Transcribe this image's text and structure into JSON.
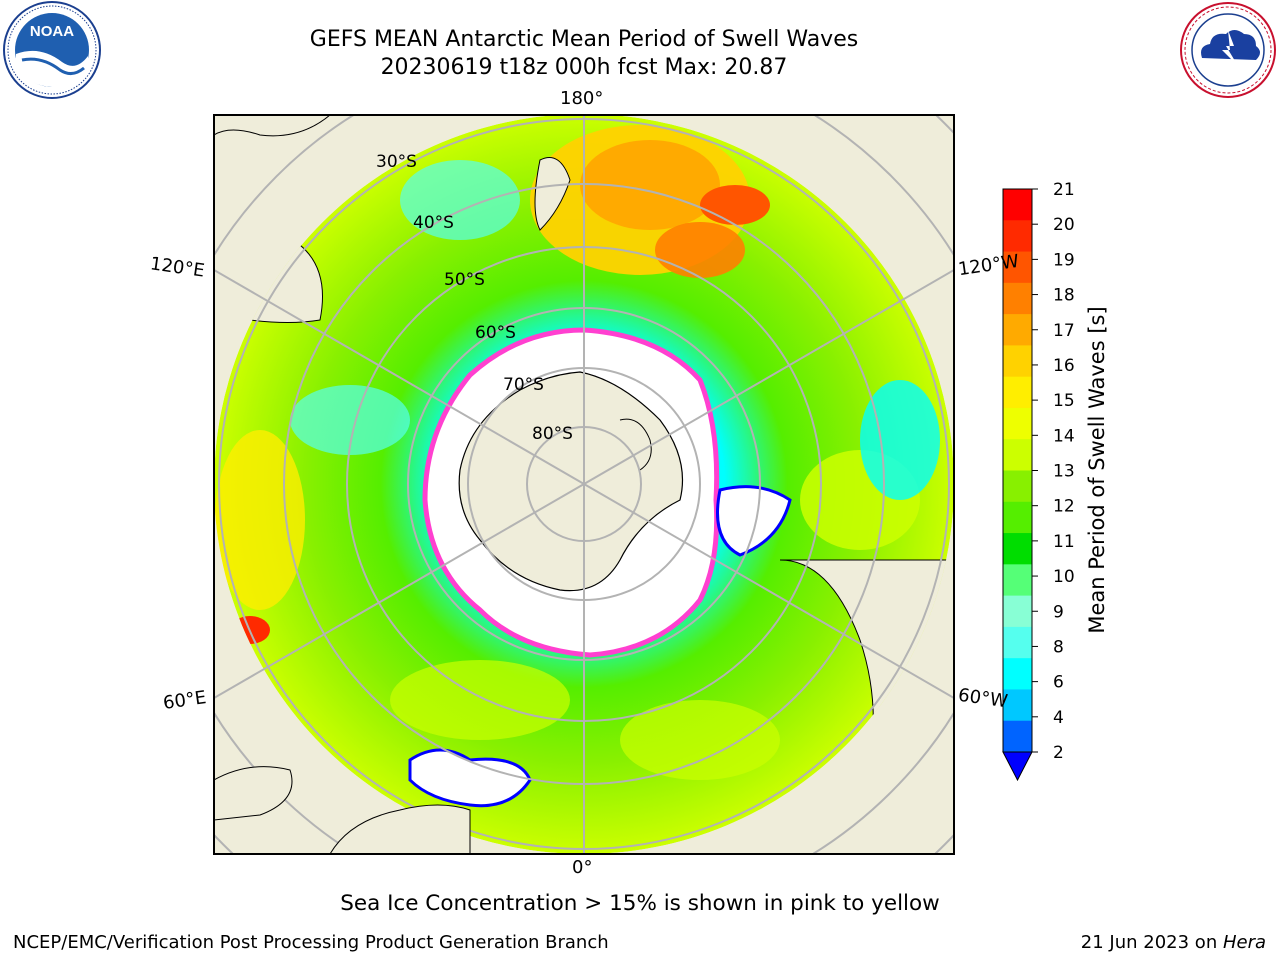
{
  "header": {
    "title_line1": "GEFS MEAN Antarctic Mean Period of Swell Waves",
    "title_line2": "20230619 t18z 000h fcst   Max: 20.87"
  },
  "logos": {
    "left": {
      "name": "noaa-logo",
      "text": "NOAA",
      "ring_text": "NATIONAL OCEANIC AND ATMOSPHERIC ADMINISTRATION · U.S. DEPARTMENT OF COMMERCE"
    },
    "right": {
      "name": "nws-logo",
      "ring_text": "NATIONAL WEATHER SERVICE"
    }
  },
  "map": {
    "projection": "south-polar-stereographic",
    "lon_labels": {
      "top": "180°",
      "upper_left": "120°E",
      "upper_right": "120°W",
      "lower_left": "60°E",
      "lower_right": "60°W",
      "bottom": "0°"
    },
    "lat_labels": [
      "30°S",
      "40°S",
      "50°S",
      "60°S",
      "70°S",
      "80°S"
    ],
    "colors": {
      "land": "#efedda",
      "ice": "#ffffff",
      "grid": "#b3b3b3",
      "ice_edge": "#ff40d0"
    }
  },
  "colorbar": {
    "label": "Mean Period of Swell Waves [s]",
    "ticks": [
      "21",
      "20",
      "19",
      "18",
      "17",
      "16",
      "15",
      "14",
      "13",
      "12",
      "11",
      "10",
      "9",
      "8",
      "6",
      "4",
      "2"
    ],
    "colors": [
      "#ff0000",
      "#ff2a00",
      "#ff5500",
      "#ff8000",
      "#ffaa00",
      "#ffd200",
      "#ffee00",
      "#eeff00",
      "#ccff00",
      "#88f000",
      "#55ee00",
      "#00dd00",
      "#55ff77",
      "#88ffd5",
      "#55ffee",
      "#00ffff",
      "#00c8ff",
      "#0064ff"
    ],
    "extend_color": "#0000ff"
  },
  "footer": {
    "note": "Sea Ice Concentration > 15% is shown in pink to yellow",
    "credit": "NCEP/EMC/Verification Post Processing Product Generation Branch",
    "date_prefix": "21 Jun 2023 on ",
    "host": "Hera"
  }
}
